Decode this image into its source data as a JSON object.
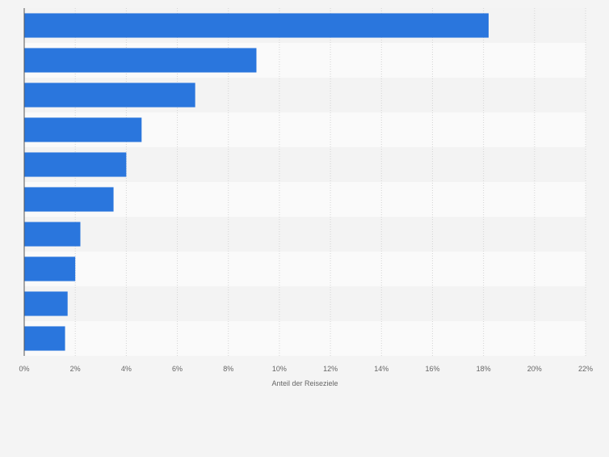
{
  "chart_data": {
    "type": "bar",
    "orientation": "horizontal",
    "categories": [
      "",
      "",
      "",
      "",
      "",
      "",
      "",
      "",
      "",
      ""
    ],
    "values": [
      18.2,
      9.1,
      6.7,
      4.6,
      4.0,
      3.5,
      2.2,
      2.0,
      1.7,
      1.6
    ],
    "xlabel": "Anteil der Reiseziele",
    "ylabel": "",
    "xlim": [
      0,
      22
    ],
    "x_ticks": [
      "0%",
      "2%",
      "4%",
      "6%",
      "8%",
      "10%",
      "12%",
      "14%",
      "16%",
      "18%",
      "20%",
      "22%"
    ],
    "grid": true,
    "bar_color": "#2a76dd"
  }
}
